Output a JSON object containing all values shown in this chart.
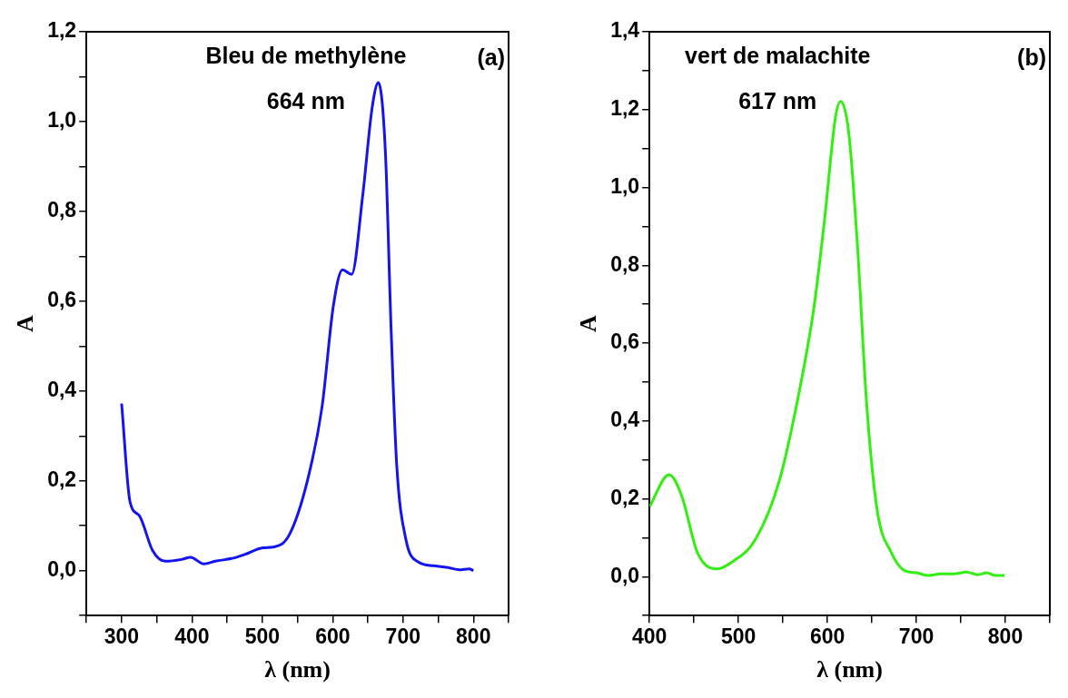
{
  "chart_data": [
    {
      "type": "line",
      "xlabel": "λ (nm)",
      "ylabel": "A",
      "annotations": [
        "Bleu de methylène",
        "664 nm",
        "(a)"
      ],
      "marker": "none",
      "legend": false,
      "grid": false,
      "x": [
        300,
        312,
        325,
        344,
        362,
        385,
        398,
        417,
        433,
        459,
        475,
        501,
        517,
        538,
        564,
        585,
        601,
        614,
        627,
        643,
        656,
        665,
        675,
        683,
        691,
        704,
        722,
        743,
        764,
        780,
        794,
        800
      ],
      "series": [
        {
          "color": "#1414f0",
          "values": [
            0.372,
            0.153,
            0.123,
            0.045,
            0.021,
            0.025,
            0.03,
            0.015,
            0.021,
            0.028,
            0.036,
            0.051,
            0.053,
            0.079,
            0.2,
            0.366,
            0.59,
            0.67,
            0.66,
            0.84,
            1.03,
            1.087,
            0.93,
            0.54,
            0.236,
            0.07,
            0.019,
            0.011,
            0.007,
            0.002,
            0.004,
            0.0
          ]
        }
      ],
      "xlim": [
        250,
        850
      ],
      "ylim": [
        -0.1,
        1.2
      ],
      "xticks": [
        {
          "value": 250,
          "label": null
        },
        300,
        {
          "value": 350,
          "label": null
        },
        400,
        {
          "value": 450,
          "label": null
        },
        500,
        {
          "value": 550,
          "label": null
        },
        600,
        {
          "value": 650,
          "label": null
        },
        700,
        {
          "value": 750,
          "label": null
        },
        800,
        {
          "value": 850,
          "label": null
        }
      ],
      "yticks": [
        {
          "value": -0.1,
          "label": null
        },
        {
          "value": 0,
          "label": "0,0"
        },
        {
          "value": 0.1,
          "label": null
        },
        {
          "value": 0.2,
          "label": "0,2"
        },
        {
          "value": 0.3,
          "label": null
        },
        {
          "value": 0.4,
          "label": "0,4"
        },
        {
          "value": 0.5,
          "label": null
        },
        {
          "value": 0.6,
          "label": "0,6"
        },
        {
          "value": 0.7,
          "label": null
        },
        {
          "value": 0.8,
          "label": "0,8"
        },
        {
          "value": 0.9,
          "label": null
        },
        {
          "value": 1.0,
          "label": "1,0"
        },
        {
          "value": 1.1,
          "label": null
        },
        {
          "value": 1.2,
          "label": "1,2"
        }
      ]
    },
    {
      "type": "line",
      "xlabel": "λ (nm)",
      "ylabel": "A",
      "annotations": [
        "vert de malachite",
        "617 nm",
        "(b)"
      ],
      "marker": "none",
      "legend": false,
      "grid": false,
      "x": [
        400,
        422,
        436,
        454,
        476,
        495,
        519,
        546,
        570,
        585,
        597,
        609,
        615,
        624,
        634,
        644,
        656,
        672,
        687,
        700,
        713,
        727,
        742,
        756,
        769,
        779,
        789,
        799
      ],
      "series": [
        {
          "color": "#33ee11",
          "values": [
            0.18,
            0.262,
            0.209,
            0.061,
            0.02,
            0.041,
            0.095,
            0.247,
            0.495,
            0.694,
            0.922,
            1.18,
            1.221,
            1.14,
            0.842,
            0.447,
            0.17,
            0.061,
            0.015,
            0.01,
            0.003,
            0.007,
            0.007,
            0.012,
            0.005,
            0.01,
            0.003,
            0.003
          ]
        }
      ],
      "xlim": [
        400,
        850
      ],
      "ylim": [
        -0.1,
        1.4
      ],
      "xticks": [
        400,
        {
          "value": 450,
          "label": null
        },
        500,
        {
          "value": 550,
          "label": null
        },
        600,
        {
          "value": 650,
          "label": null
        },
        700,
        {
          "value": 750,
          "label": null
        },
        800,
        {
          "value": 850,
          "label": null
        }
      ],
      "yticks": [
        {
          "value": -0.1,
          "label": null
        },
        {
          "value": 0,
          "label": "0,0"
        },
        {
          "value": 0.1,
          "label": null
        },
        {
          "value": 0.2,
          "label": "0,2"
        },
        {
          "value": 0.3,
          "label": null
        },
        {
          "value": 0.4,
          "label": "0,4"
        },
        {
          "value": 0.5,
          "label": null
        },
        {
          "value": 0.6,
          "label": "0,6"
        },
        {
          "value": 0.7,
          "label": null
        },
        {
          "value": 0.8,
          "label": "0,8"
        },
        {
          "value": 0.9,
          "label": null
        },
        {
          "value": 1.0,
          "label": "1,0"
        },
        {
          "value": 1.1,
          "label": null
        },
        {
          "value": 1.2,
          "label": "1,2"
        },
        {
          "value": 1.3,
          "label": null
        },
        {
          "value": 1.4,
          "label": "1,4"
        }
      ]
    }
  ]
}
